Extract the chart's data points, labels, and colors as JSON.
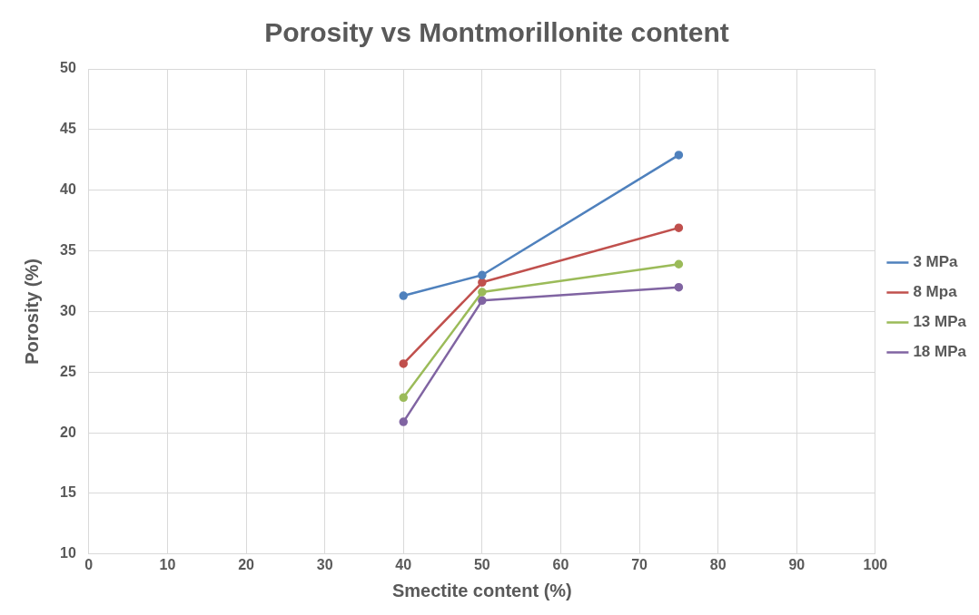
{
  "chart_data": {
    "type": "line",
    "title": "Porosity vs Montmorillonite content",
    "xlabel": "Smectite content (%)",
    "ylabel": "Porosity (%)",
    "x": [
      40,
      50,
      75
    ],
    "series": [
      {
        "name": "3 MPa",
        "color": "#4f81bd",
        "values": [
          31.3,
          33.0,
          42.9
        ]
      },
      {
        "name": "8 Mpa",
        "color": "#c0504d",
        "values": [
          25.7,
          32.4,
          36.9
        ]
      },
      {
        "name": "13 MPa",
        "color": "#9bbb59",
        "values": [
          22.9,
          31.6,
          33.9
        ]
      },
      {
        "name": "18 MPa",
        "color": "#8064a2",
        "values": [
          20.9,
          30.9,
          32.0
        ]
      }
    ],
    "xlim": [
      0,
      100
    ],
    "xticks": [
      0,
      10,
      20,
      30,
      40,
      50,
      60,
      70,
      80,
      90,
      100
    ],
    "ylim": [
      10,
      50
    ],
    "yticks": [
      10,
      15,
      20,
      25,
      30,
      35,
      40,
      45,
      50
    ],
    "grid": true,
    "legend": "right",
    "marker": "circle",
    "line_style": "solid"
  }
}
